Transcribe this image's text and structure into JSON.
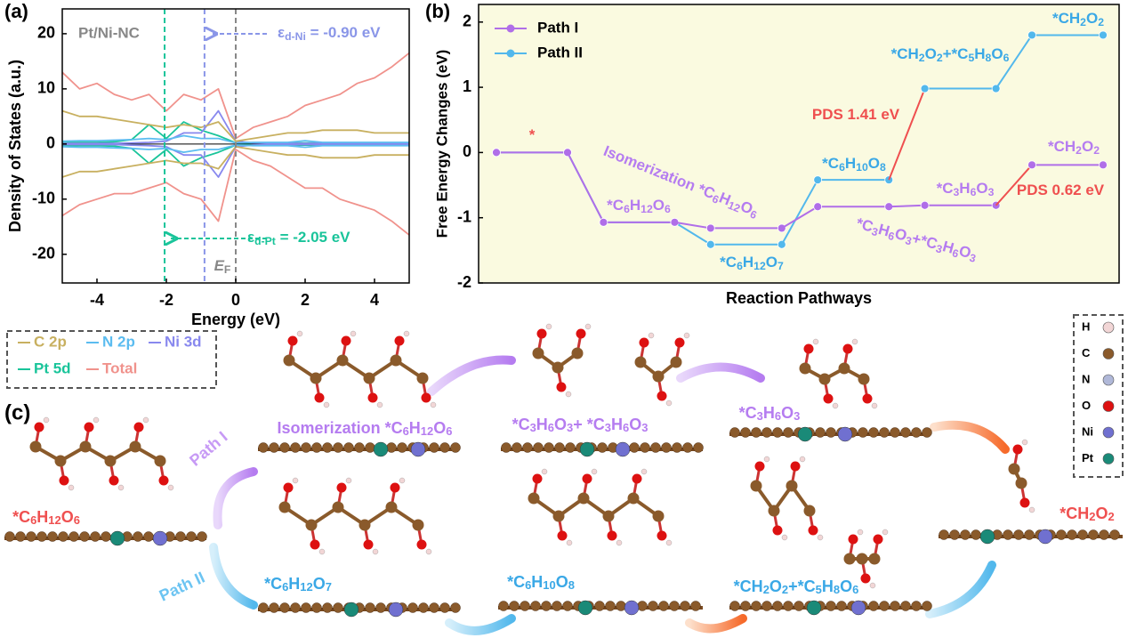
{
  "chart_data": [
    {
      "type": "line",
      "panel_label": "(a)",
      "xlabel": "Energy (eV)",
      "ylabel": "Density of States (a.u.)",
      "xlim": [
        -5,
        5
      ],
      "xticks": [
        -4,
        -2,
        0,
        2,
        4
      ],
      "ylim": [
        -25.2,
        24.5
      ],
      "yticks": [
        -20,
        -10,
        0,
        10,
        20
      ],
      "x": [
        -5,
        -4.5,
        -4,
        -3.5,
        -3,
        -2.5,
        -2,
        -1.5,
        -1,
        -0.5,
        0,
        0.5,
        1,
        1.5,
        2,
        2.5,
        3,
        3.5,
        4,
        4.5,
        5
      ],
      "series": [
        {
          "name": "C 2p",
          "color": "#c8b060",
          "values": [
            6,
            5,
            5,
            4.5,
            4,
            3.5,
            3,
            3.5,
            3,
            4,
            0.5,
            1,
            1.5,
            2,
            2,
            2.5,
            2.5,
            2.5,
            2,
            2,
            2
          ],
          "values_down": [
            -6,
            -5,
            -5,
            -4.5,
            -4,
            -3.5,
            -3,
            -3.5,
            -3.5,
            -4.5,
            -0.5,
            -1,
            -1.5,
            -2,
            -2,
            -2.5,
            -2.5,
            -2.5,
            -2,
            -2,
            -2
          ]
        },
        {
          "name": "N 2p",
          "color": "#5bbcf0",
          "values": [
            0.5,
            0.6,
            0.6,
            0.7,
            0.8,
            1,
            0.8,
            1.5,
            1,
            1,
            0.2,
            0.3,
            0.3,
            0.3,
            0.6,
            0.3,
            0.3,
            0.3,
            0.3,
            0.3,
            0.3
          ],
          "values_down": [
            -0.5,
            -0.6,
            -0.6,
            -0.7,
            -0.8,
            -1,
            -0.8,
            -1.5,
            -1,
            -1,
            -0.2,
            -0.3,
            -0.3,
            -0.3,
            -0.6,
            -0.3,
            -0.3,
            -0.3,
            -0.3,
            -0.3,
            -0.3
          ]
        },
        {
          "name": "Ni 3d",
          "color": "#8888ee",
          "values": [
            0.1,
            0.1,
            0.1,
            0.1,
            0.2,
            0.3,
            0.5,
            2,
            2,
            6,
            0.5,
            0.2,
            0.1,
            0.1,
            0.1,
            0.1,
            0.1,
            0.1,
            0.1,
            0.1,
            0.1
          ],
          "values_down": [
            -0.1,
            -0.1,
            -0.1,
            -0.1,
            -0.2,
            -0.3,
            -0.5,
            -2,
            -2,
            -6,
            -0.5,
            -0.2,
            -0.1,
            -0.1,
            -0.1,
            -0.1,
            -0.1,
            -0.1,
            -0.1,
            -0.1,
            -0.1
          ]
        },
        {
          "name": "Pt 5d",
          "color": "#19c49a",
          "values": [
            0.3,
            0.3,
            0.3,
            0.4,
            0.8,
            3.5,
            1,
            4,
            2.5,
            1.5,
            0.2,
            0.2,
            0.2,
            0.2,
            0.2,
            0.2,
            0.2,
            0.2,
            0.2,
            0.2,
            0.2
          ],
          "values_down": [
            -0.3,
            -0.3,
            -0.3,
            -0.4,
            -0.8,
            -3.5,
            -1,
            -4,
            -2.5,
            -1.5,
            -0.2,
            -0.2,
            -0.2,
            -0.2,
            -0.2,
            -0.2,
            -0.2,
            -0.2,
            -0.2,
            -0.2,
            -0.2
          ]
        },
        {
          "name": "Total",
          "color": "#f0928c",
          "values": [
            13,
            10,
            11,
            9,
            8,
            9,
            6,
            9,
            8,
            10,
            1,
            3,
            4,
            5,
            7,
            8,
            9,
            11,
            12,
            14,
            16.5
          ],
          "values_down": [
            -13,
            -11,
            -10,
            -9,
            -9,
            -8,
            -7,
            -9,
            -10,
            -14,
            -1,
            -3,
            -4,
            -6,
            -8,
            -8,
            -10,
            -11,
            -12,
            -14,
            -16.5
          ]
        }
      ],
      "vlines": [
        -2.05,
        -0.9,
        0
      ],
      "vline_colors": [
        "#19c49a",
        "#8a96e8",
        "#888888"
      ],
      "annotations": [
        {
          "text": "Pt/Ni-NC",
          "color": "#888888"
        },
        {
          "text": "εd-Ni = -0.90 eV",
          "color": "#8a96e8"
        },
        {
          "text": "εd-Pt = -2.05 eV",
          "color": "#19c49a"
        },
        {
          "text": "EF",
          "color": "#888888"
        }
      ]
    },
    {
      "type": "step",
      "panel_label": "(b)",
      "xlabel": "Reaction Pathways",
      "ylabel": "Free Energy Changes (eV)",
      "ylim": [
        -2,
        2.27
      ],
      "yticks": [
        -2,
        -1,
        0,
        1,
        2
      ],
      "background": "#fafae0",
      "categories": [
        null,
        null,
        null,
        null,
        null,
        null
      ],
      "series": [
        {
          "name": "Path I",
          "color": "#b06ee8",
          "values": [
            0,
            -1.07,
            -1.16,
            -0.83,
            -0.81,
            -0.19
          ]
        },
        {
          "name": "Path II",
          "color": "#52b8ec",
          "values": [
            0,
            -1.07,
            -1.41,
            -0.42,
            0.98,
            1.8
          ]
        }
      ],
      "annotations": [
        {
          "text": "*",
          "color": "#ef4f4f"
        },
        {
          "text": "Isomerization *C6H12O6",
          "color": "#b57cf0"
        },
        {
          "text": "*C6H12O6",
          "color": "#b57cf0"
        },
        {
          "text": "*C6H12O7",
          "color": "#3aa8e6"
        },
        {
          "text": "*C6H10O8",
          "color": "#3aa8e6"
        },
        {
          "text": "*C3H6O3",
          "color": "#b57cf0"
        },
        {
          "text": "*C3H6O3+*C3H6O3",
          "color": "#b57cf0"
        },
        {
          "text": "PDS 1.41 eV",
          "color": "#ef4f4f"
        },
        {
          "text": "PDS 0.62 eV",
          "color": "#ef4f4f"
        },
        {
          "text": "*CH2O2+*C5H8O6",
          "color": "#3aa8e6"
        },
        {
          "text": "*CH2O2",
          "color": "#3aa8e6"
        },
        {
          "text": "*CH2O2",
          "color": "#b57cf0"
        }
      ]
    }
  ],
  "panel_c": {
    "panel_label": "(c)",
    "labels": [
      {
        "text": "Path I",
        "color": "#c79af5"
      },
      {
        "text": "Path II",
        "color": "#6cc4f2"
      },
      {
        "text": "*C6H12O6",
        "color": "#ef5050"
      },
      {
        "text": "Isomerization *C6H12O6",
        "color": "#b57cf0"
      },
      {
        "text": "*C3H6O3+ *C3H6O3",
        "color": "#b57cf0"
      },
      {
        "text": "*C3H6O3",
        "color": "#b57cf0"
      },
      {
        "text": "*CH2O2",
        "color": "#ef5050"
      },
      {
        "text": "*C6H12O7",
        "color": "#3aa8e6"
      },
      {
        "text": "*C6H10O8",
        "color": "#3aa8e6"
      },
      {
        "text": "*CH2O2+*C5H8O6",
        "color": "#3aa8e6"
      }
    ],
    "atoms": [
      {
        "name": "H",
        "color": "#f2d6d6"
      },
      {
        "name": "C",
        "color": "#8a5a2b"
      },
      {
        "name": "N",
        "color": "#b0b8d8"
      },
      {
        "name": "O",
        "color": "#dd1111"
      },
      {
        "name": "Ni",
        "color": "#7070d0"
      },
      {
        "name": "Pt",
        "color": "#1a8a78"
      }
    ]
  }
}
